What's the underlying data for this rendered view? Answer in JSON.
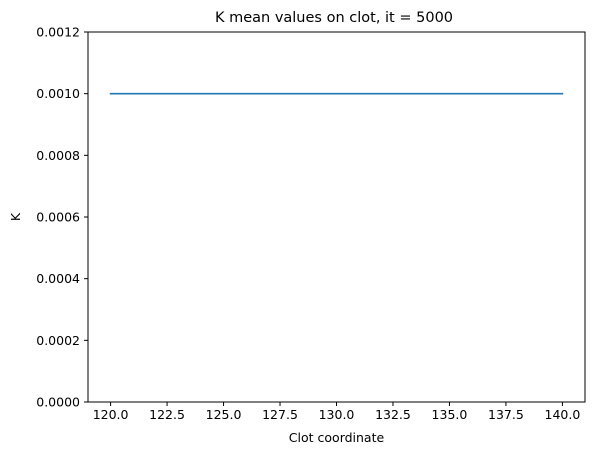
{
  "chart_data": {
    "type": "line",
    "title": "K mean values on clot, it = 5000",
    "xlabel": "Clot coordinate",
    "ylabel": "K",
    "xlim": [
      119.0,
      141.0
    ],
    "ylim": [
      0.0,
      0.0012
    ],
    "xticks": [
      120.0,
      122.5,
      125.0,
      127.5,
      130.0,
      132.5,
      135.0,
      137.5,
      140.0
    ],
    "xtick_labels": [
      "120.0",
      "122.5",
      "125.0",
      "127.5",
      "130.0",
      "132.5",
      "135.0",
      "137.5",
      "140.0"
    ],
    "yticks": [
      0.0,
      0.0002,
      0.0004,
      0.0006,
      0.0008,
      0.001,
      0.0012
    ],
    "ytick_labels": [
      "0.0000",
      "0.0002",
      "0.0004",
      "0.0006",
      "0.0008",
      "0.0010",
      "0.0012"
    ],
    "grid": false,
    "series": [
      {
        "color": "#1f77b4",
        "x": [
          120.0,
          140.0
        ],
        "y": [
          0.001,
          0.001
        ]
      }
    ]
  }
}
